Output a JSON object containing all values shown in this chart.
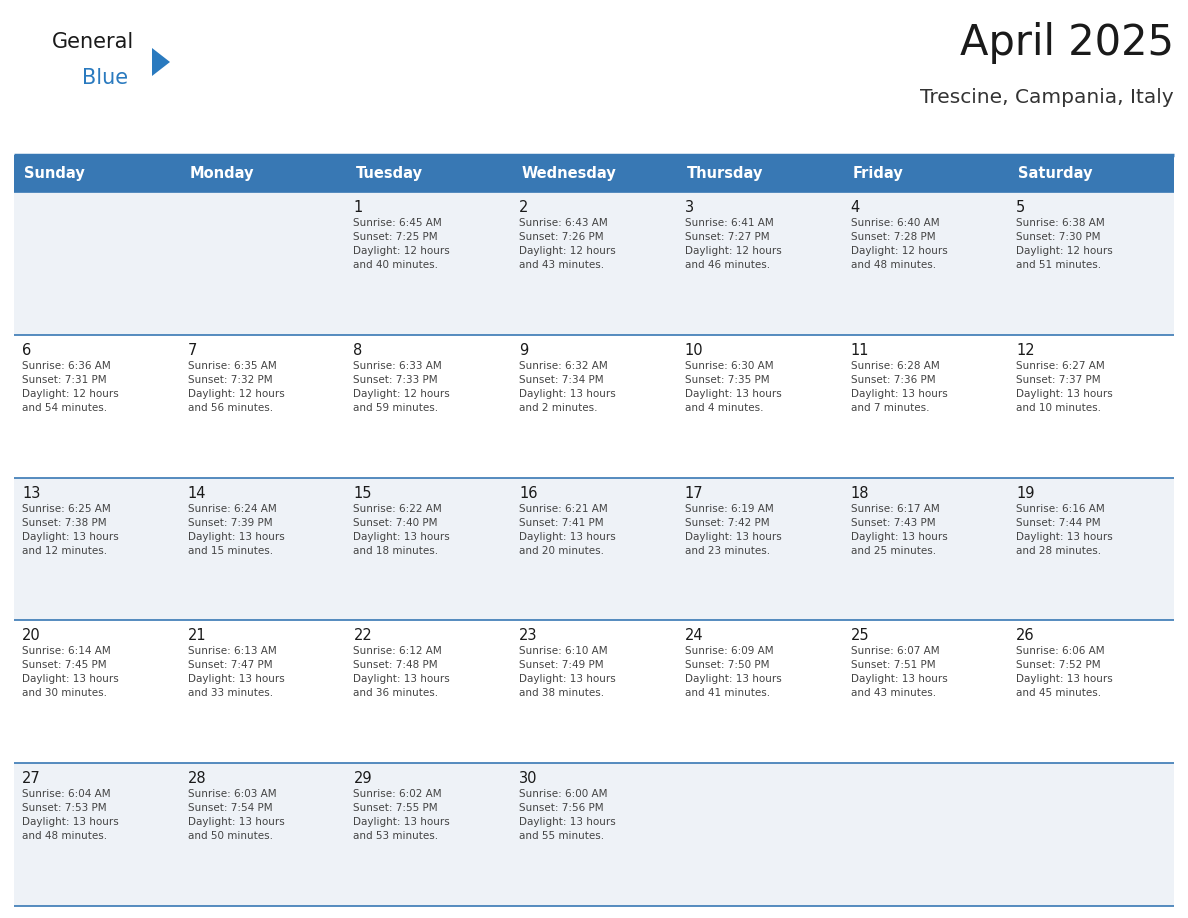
{
  "title": "April 2025",
  "subtitle": "Trescine, Campania, Italy",
  "header_color": "#3878b4",
  "header_text_color": "#ffffff",
  "row_colors": [
    "#eef2f7",
    "#ffffff"
  ],
  "border_color": "#3878b4",
  "title_color": "#1a1a1a",
  "subtitle_color": "#333333",
  "day_number_color": "#1a1a1a",
  "info_color": "#444444",
  "day_names": [
    "Sunday",
    "Monday",
    "Tuesday",
    "Wednesday",
    "Thursday",
    "Friday",
    "Saturday"
  ],
  "logo_general_color": "#1a1a1a",
  "logo_blue_color": "#2a7abf",
  "logo_triangle_color": "#2a7abf",
  "calendar": [
    [
      {
        "day": "",
        "info": ""
      },
      {
        "day": "",
        "info": ""
      },
      {
        "day": "1",
        "info": "Sunrise: 6:45 AM\nSunset: 7:25 PM\nDaylight: 12 hours\nand 40 minutes."
      },
      {
        "day": "2",
        "info": "Sunrise: 6:43 AM\nSunset: 7:26 PM\nDaylight: 12 hours\nand 43 minutes."
      },
      {
        "day": "3",
        "info": "Sunrise: 6:41 AM\nSunset: 7:27 PM\nDaylight: 12 hours\nand 46 minutes."
      },
      {
        "day": "4",
        "info": "Sunrise: 6:40 AM\nSunset: 7:28 PM\nDaylight: 12 hours\nand 48 minutes."
      },
      {
        "day": "5",
        "info": "Sunrise: 6:38 AM\nSunset: 7:30 PM\nDaylight: 12 hours\nand 51 minutes."
      }
    ],
    [
      {
        "day": "6",
        "info": "Sunrise: 6:36 AM\nSunset: 7:31 PM\nDaylight: 12 hours\nand 54 minutes."
      },
      {
        "day": "7",
        "info": "Sunrise: 6:35 AM\nSunset: 7:32 PM\nDaylight: 12 hours\nand 56 minutes."
      },
      {
        "day": "8",
        "info": "Sunrise: 6:33 AM\nSunset: 7:33 PM\nDaylight: 12 hours\nand 59 minutes."
      },
      {
        "day": "9",
        "info": "Sunrise: 6:32 AM\nSunset: 7:34 PM\nDaylight: 13 hours\nand 2 minutes."
      },
      {
        "day": "10",
        "info": "Sunrise: 6:30 AM\nSunset: 7:35 PM\nDaylight: 13 hours\nand 4 minutes."
      },
      {
        "day": "11",
        "info": "Sunrise: 6:28 AM\nSunset: 7:36 PM\nDaylight: 13 hours\nand 7 minutes."
      },
      {
        "day": "12",
        "info": "Sunrise: 6:27 AM\nSunset: 7:37 PM\nDaylight: 13 hours\nand 10 minutes."
      }
    ],
    [
      {
        "day": "13",
        "info": "Sunrise: 6:25 AM\nSunset: 7:38 PM\nDaylight: 13 hours\nand 12 minutes."
      },
      {
        "day": "14",
        "info": "Sunrise: 6:24 AM\nSunset: 7:39 PM\nDaylight: 13 hours\nand 15 minutes."
      },
      {
        "day": "15",
        "info": "Sunrise: 6:22 AM\nSunset: 7:40 PM\nDaylight: 13 hours\nand 18 minutes."
      },
      {
        "day": "16",
        "info": "Sunrise: 6:21 AM\nSunset: 7:41 PM\nDaylight: 13 hours\nand 20 minutes."
      },
      {
        "day": "17",
        "info": "Sunrise: 6:19 AM\nSunset: 7:42 PM\nDaylight: 13 hours\nand 23 minutes."
      },
      {
        "day": "18",
        "info": "Sunrise: 6:17 AM\nSunset: 7:43 PM\nDaylight: 13 hours\nand 25 minutes."
      },
      {
        "day": "19",
        "info": "Sunrise: 6:16 AM\nSunset: 7:44 PM\nDaylight: 13 hours\nand 28 minutes."
      }
    ],
    [
      {
        "day": "20",
        "info": "Sunrise: 6:14 AM\nSunset: 7:45 PM\nDaylight: 13 hours\nand 30 minutes."
      },
      {
        "day": "21",
        "info": "Sunrise: 6:13 AM\nSunset: 7:47 PM\nDaylight: 13 hours\nand 33 minutes."
      },
      {
        "day": "22",
        "info": "Sunrise: 6:12 AM\nSunset: 7:48 PM\nDaylight: 13 hours\nand 36 minutes."
      },
      {
        "day": "23",
        "info": "Sunrise: 6:10 AM\nSunset: 7:49 PM\nDaylight: 13 hours\nand 38 minutes."
      },
      {
        "day": "24",
        "info": "Sunrise: 6:09 AM\nSunset: 7:50 PM\nDaylight: 13 hours\nand 41 minutes."
      },
      {
        "day": "25",
        "info": "Sunrise: 6:07 AM\nSunset: 7:51 PM\nDaylight: 13 hours\nand 43 minutes."
      },
      {
        "day": "26",
        "info": "Sunrise: 6:06 AM\nSunset: 7:52 PM\nDaylight: 13 hours\nand 45 minutes."
      }
    ],
    [
      {
        "day": "27",
        "info": "Sunrise: 6:04 AM\nSunset: 7:53 PM\nDaylight: 13 hours\nand 48 minutes."
      },
      {
        "day": "28",
        "info": "Sunrise: 6:03 AM\nSunset: 7:54 PM\nDaylight: 13 hours\nand 50 minutes."
      },
      {
        "day": "29",
        "info": "Sunrise: 6:02 AM\nSunset: 7:55 PM\nDaylight: 13 hours\nand 53 minutes."
      },
      {
        "day": "30",
        "info": "Sunrise: 6:00 AM\nSunset: 7:56 PM\nDaylight: 13 hours\nand 55 minutes."
      },
      {
        "day": "",
        "info": ""
      },
      {
        "day": "",
        "info": ""
      },
      {
        "day": "",
        "info": ""
      }
    ]
  ]
}
